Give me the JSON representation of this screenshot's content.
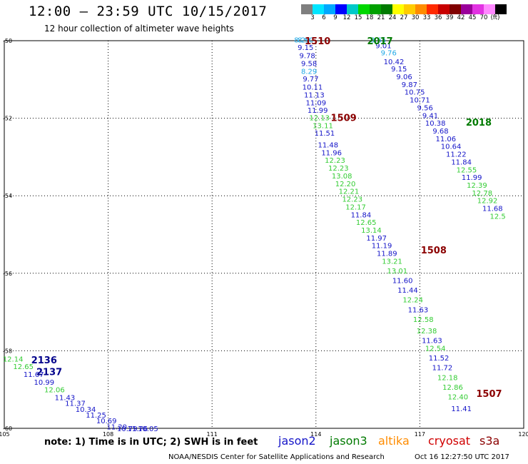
{
  "header": {
    "title": "12:00 – 23:59 UTC 10/15/2017",
    "subtitle": "12 hour collection of altimeter wave heights"
  },
  "colorbar": {
    "colors": [
      "#7f7f7f",
      "#00e5ff",
      "#00a8ff",
      "#0000ff",
      "#00c9c9",
      "#00d800",
      "#00a000",
      "#007a00",
      "#ffff00",
      "#ffcc00",
      "#ff8c00",
      "#ff2a00",
      "#c80000",
      "#800000",
      "#9a009a",
      "#e233e2",
      "#ff88ff",
      "#000000"
    ],
    "labels": [
      "3",
      "6",
      "9",
      "12",
      "15",
      "18",
      "21",
      "24",
      "27",
      "30",
      "33",
      "36",
      "39",
      "42",
      "45",
      "70",
      "(ft)"
    ]
  },
  "footer": {
    "note": "note:  1) Time is in UTC;  2) SWH is in feet",
    "satellites": [
      {
        "name": "jason2",
        "color": "#1414c8"
      },
      {
        "name": "jason3",
        "color": "#007a00"
      },
      {
        "name": "altika",
        "color": "#ff8c00"
      },
      {
        "name": "cryosat",
        "color": "#d00000"
      },
      {
        "name": "s3a",
        "color": "#8b0000"
      }
    ],
    "credit": "NOAA/NESDIS Center for Satellite Applications and Research",
    "stamp": "Oct 16 12:27:50 UTC 2017"
  },
  "chart_data": {
    "type": "scatter",
    "title": "12:00 – 23:59 UTC 10/15/2017",
    "subtitle": "12 hour collection of altimeter wave heights",
    "xlim": [
      105,
      120
    ],
    "ylim": [
      -60,
      -50
    ],
    "xticks": [
      "105",
      "108",
      "111",
      "114",
      "117",
      "120"
    ],
    "yticks": [
      "-50",
      "-52",
      "-54",
      "-56",
      "-58",
      "-60"
    ],
    "grid": true,
    "palette": {
      "blue": "#1414c8",
      "lightblue": "#1fa8e6",
      "green": "#33cc33",
      "navy": "#00007a"
    },
    "pass_labels": [
      {
        "text": "1510",
        "x": 114.05,
        "y": -50.0,
        "color": "#8b0000"
      },
      {
        "text": "2017",
        "x": 115.85,
        "y": -50.0,
        "color": "#007a00"
      },
      {
        "text": "1509",
        "x": 114.8,
        "y": -51.98,
        "color": "#8b0000"
      },
      {
        "text": "2018",
        "x": 118.7,
        "y": -52.1,
        "color": "#007a00"
      },
      {
        "text": "1508",
        "x": 117.4,
        "y": -55.4,
        "color": "#8b0000"
      },
      {
        "text": "2136",
        "x": 106.15,
        "y": -58.23,
        "color": "#00008b"
      },
      {
        "text": "2137",
        "x": 106.3,
        "y": -58.54,
        "color": "#00008b"
      },
      {
        "text": "1507",
        "x": 119.0,
        "y": -59.1,
        "color": "#8b0000"
      }
    ],
    "series": [
      {
        "name": "1510",
        "x": [
          113.7,
          113.7,
          113.75,
          113.8,
          113.8,
          113.85,
          113.9,
          113.95,
          114.0,
          114.05,
          114.1
        ],
        "y": [
          -49.97,
          -50.17,
          -50.38,
          -50.58,
          -50.78,
          -50.98,
          -51.19,
          -51.39,
          -51.59,
          -51.79,
          -51.98
        ],
        "values": [
          "8.90",
          "9.15",
          "9.78",
          "9.58",
          "8.29",
          "9.77",
          "10.11",
          "11.13",
          "11.09",
          "11.99",
          "12.13"
        ],
        "colors": [
          "lightblue",
          "blue",
          "blue",
          "blue",
          "lightblue",
          "blue",
          "blue",
          "blue",
          "blue",
          "blue",
          "green"
        ]
      },
      {
        "name": "1509",
        "x": [
          114.2,
          114.25,
          114.35,
          114.45,
          114.55,
          114.65,
          114.75,
          114.85,
          114.95,
          115.05,
          115.15,
          115.3,
          115.45,
          115.6,
          115.75,
          115.9,
          116.05,
          116.2,
          116.35,
          116.5,
          116.65,
          116.8,
          116.95,
          117.1,
          117.2,
          117.35,
          117.45,
          117.55,
          117.65,
          117.8,
          117.95,
          118.1,
          118.2,
          118.3,
          118.4,
          118.5
        ],
        "y": [
          -52.18,
          -52.38,
          -52.68,
          -52.88,
          -53.08,
          -53.28,
          -53.48,
          -53.68,
          -53.88,
          -54.08,
          -54.28,
          -54.48,
          -54.68,
          -54.88,
          -55.08,
          -55.28,
          -55.48,
          -55.68,
          -55.93,
          -56.18,
          -56.43,
          -56.68,
          -56.93,
          -57.18,
          -57.48,
          -57.73,
          -57.93,
          -58.18,
          -58.43,
          -58.68,
          -58.93,
          -59.18,
          -59.48,
          -59.73,
          -59.93,
          -60.0
        ],
        "values": [
          "13.11",
          "11.51",
          "11.48",
          "11.96",
          "12.23",
          "12.23",
          "13.08",
          "12.20",
          "12.21",
          "12.23",
          "12.17",
          "11.84",
          "12.65",
          "13.14",
          "11.97",
          "11.19",
          "11.89",
          "13.21",
          "13.01",
          "11.60",
          "11.44",
          "12.24",
          "11.63",
          "12.58",
          "12.38",
          "11.63",
          "12.54",
          "11.52",
          "11.72",
          "12.18",
          "12.86",
          "12.40",
          "11.41",
          "",
          "",
          ""
        ],
        "colors": [
          "green",
          "blue",
          "blue",
          "blue",
          "green",
          "green",
          "green",
          "green",
          "green",
          "green",
          "green",
          "blue",
          "green",
          "green",
          "blue",
          "blue",
          "blue",
          "green",
          "green",
          "blue",
          "blue",
          "green",
          "blue",
          "green",
          "green",
          "blue",
          "green",
          "blue",
          "blue",
          "green",
          "green",
          "green",
          "blue",
          "blue",
          "blue",
          "blue"
        ]
      },
      {
        "name": "2017",
        "x": [
          113.6,
          115.8,
          115.95,
          116.1,
          116.25,
          116.4,
          116.55,
          116.7,
          116.85,
          117.0,
          117.15,
          117.3,
          117.45,
          117.6,
          117.75,
          117.9,
          118.05,
          118.2,
          118.35,
          118.5,
          118.65,
          118.8,
          118.95,
          119.1,
          119.25,
          119.4,
          119.55,
          119.7,
          119.85,
          120.0
        ],
        "y": [
          -49.97,
          -49.97,
          -50.12,
          -50.3,
          -50.53,
          -50.72,
          -50.92,
          -51.12,
          -51.32,
          -51.52,
          -51.72,
          -51.92,
          -52.12,
          -52.32,
          -52.52,
          -52.72,
          -52.92,
          -53.12,
          -53.32,
          -53.52,
          -53.72,
          -53.92,
          -54.12,
          -54.32,
          -54.52,
          -54.72,
          -54.92,
          -55.12,
          -55.32,
          -55.52
        ],
        "values": [
          "8.29",
          "8.65",
          "9.01",
          "9.76",
          "10.42",
          "9.15",
          "9.06",
          "9.87",
          "10.75",
          "10.71",
          "9.56",
          "9.41",
          "10.38",
          "9.68",
          "11.06",
          "10.64",
          "11.22",
          "11.84",
          "12.55",
          "11.99",
          "12.39",
          "12.78",
          "12.92",
          "11.68",
          "12.5",
          "",
          "",
          "",
          "",
          ""
        ],
        "colors": [
          "lightblue",
          "lightblue",
          "blue",
          "lightblue",
          "blue",
          "blue",
          "blue",
          "blue",
          "blue",
          "blue",
          "blue",
          "blue",
          "blue",
          "blue",
          "blue",
          "blue",
          "blue",
          "blue",
          "green",
          "blue",
          "green",
          "green",
          "green",
          "blue",
          "green",
          "green",
          "green",
          "green",
          "green",
          "green"
        ]
      },
      {
        "name": "2136",
        "x": [
          105.25,
          105.55,
          105.85,
          106.15,
          106.45,
          106.75,
          107.05,
          107.35,
          107.65,
          107.95,
          108.25,
          108.55,
          108.85,
          109.15
        ],
        "y": [
          -58.2,
          -58.4,
          -58.6,
          -58.8,
          -59.0,
          -59.2,
          -59.35,
          -59.5,
          -59.65,
          -59.8,
          -59.95,
          -60.0,
          -60.0,
          -60.0
        ],
        "values": [
          "12.14",
          "12.65",
          "11.67",
          "10.99",
          "12.06",
          "11.43",
          "11.37",
          "10.34",
          "11.25",
          "10.69",
          "11.20",
          "10.79",
          "11.76",
          "10.05"
        ],
        "colors": [
          "green",
          "green",
          "blue",
          "blue",
          "green",
          "blue",
          "blue",
          "blue",
          "blue",
          "blue",
          "blue",
          "blue",
          "blue",
          "blue"
        ]
      }
    ]
  }
}
